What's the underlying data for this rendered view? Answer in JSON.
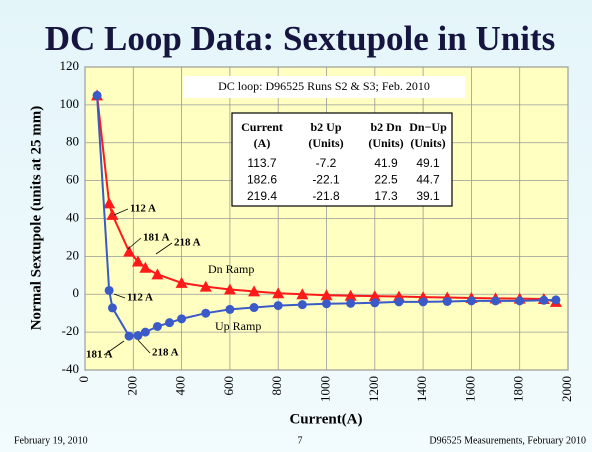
{
  "chart_data": {
    "type": "line",
    "title": "DC Loop Data: Sextupole in Units",
    "xlabel": "Current(A)",
    "ylabel": "Normal Sextupole (units at 25 mm)",
    "xlim": [
      0,
      2000
    ],
    "xticks": [
      0,
      200,
      400,
      600,
      800,
      1000,
      1200,
      1400,
      1600,
      1800,
      2000
    ],
    "ylim": [
      -40,
      120
    ],
    "yticks": [
      -40,
      -20,
      0,
      20,
      40,
      60,
      80,
      100,
      120
    ],
    "grid": true,
    "series": [
      {
        "name": "Dn Ramp",
        "color": "#ff1a1a",
        "marker": "triangle",
        "x": [
          50,
          100,
          113.7,
          182.6,
          219.4,
          250,
          300,
          400,
          500,
          600,
          700,
          800,
          900,
          1000,
          1100,
          1200,
          1300,
          1400,
          1500,
          1600,
          1700,
          1800,
          1900,
          1950
        ],
        "values": [
          105,
          48,
          41.9,
          22.5,
          17.3,
          14,
          10.5,
          6,
          4,
          2.5,
          1.5,
          0.5,
          0,
          -0.5,
          -0.8,
          -1,
          -1.2,
          -1.5,
          -1.7,
          -2,
          -2.2,
          -2.3,
          -2.5,
          -4
        ]
      },
      {
        "name": "Up Ramp",
        "color": "#3a5bc7",
        "marker": "circle",
        "x": [
          50,
          100,
          113.7,
          182.6,
          219.4,
          250,
          300,
          350,
          400,
          500,
          600,
          700,
          800,
          900,
          1000,
          1100,
          1200,
          1300,
          1400,
          1500,
          1600,
          1700,
          1800,
          1900,
          1950
        ],
        "values": [
          105,
          2,
          -7.2,
          -22.1,
          -21.8,
          -20,
          -17,
          -15,
          -13,
          -10,
          -8,
          -7,
          -6,
          -5.5,
          -5,
          -4.8,
          -4.5,
          -4,
          -4,
          -3.8,
          -3.5,
          -3.5,
          -3.5,
          -3.2,
          -3
        ]
      }
    ],
    "annotations": [
      "112 A",
      "181 A",
      "218 A",
      "112 A",
      "181 A",
      "218 A"
    ],
    "note": "DC loop: D96525 Runs S2 & S3; Feb. 2010",
    "table": {
      "headers": [
        [
          "Current",
          "(A)"
        ],
        [
          "b2 Up",
          "(Units)"
        ],
        [
          "b2 Dn",
          "(Units)"
        ],
        [
          "Dn−Up",
          "(Units)"
        ]
      ],
      "rows": [
        [
          113.7,
          -7.2,
          41.9,
          49.1
        ],
        [
          182.6,
          -22.1,
          22.5,
          44.7
        ],
        [
          219.4,
          -21.8,
          17.3,
          39.1
        ]
      ]
    },
    "footer": {
      "left": "February 19, 2010",
      "center": "7",
      "right": "D96525 Measurements, February 2010"
    }
  }
}
